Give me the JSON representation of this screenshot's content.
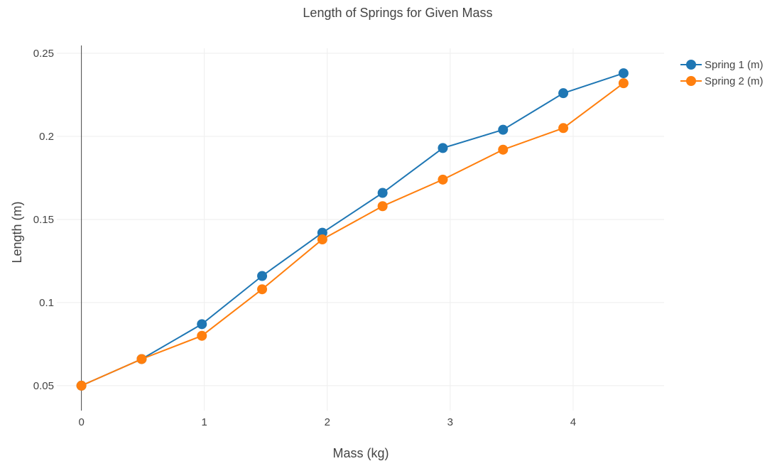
{
  "chart_data": {
    "type": "line",
    "title": "Length of Springs for Given Mass",
    "xlabel": "Mass (kg)",
    "ylabel": "Length (m)",
    "xlim": [
      -0.2,
      4.74
    ],
    "ylim": [
      0.035,
      0.253
    ],
    "xticks": [
      0,
      1,
      2,
      3,
      4
    ],
    "yticks": [
      0.05,
      0.1,
      0.15,
      0.2,
      0.25
    ],
    "xtick_labels": [
      "0",
      "1",
      "2",
      "3",
      "4"
    ],
    "ytick_labels": [
      "0.05",
      "0.1",
      "0.15",
      "0.2",
      "0.25"
    ],
    "grid": true,
    "legend_position": "top-right",
    "x": [
      0,
      0.49,
      0.98,
      1.47,
      1.96,
      2.45,
      2.94,
      3.43,
      3.92,
      4.41
    ],
    "series": [
      {
        "name": "Spring 1 (m)",
        "color": "#1f77b4",
        "values": [
          0.05,
          0.066,
          0.087,
          0.116,
          0.142,
          0.166,
          0.193,
          0.204,
          0.226,
          0.238
        ]
      },
      {
        "name": "Spring 2 (m)",
        "color": "#ff7f0e",
        "values": [
          0.05,
          0.066,
          0.08,
          0.108,
          0.138,
          0.158,
          0.174,
          0.192,
          0.205,
          0.232
        ]
      }
    ]
  }
}
